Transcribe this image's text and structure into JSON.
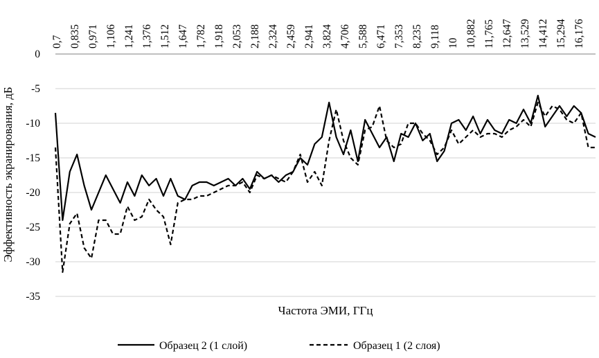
{
  "chart_data": {
    "type": "line",
    "xlabel": "Частота ЭМИ, ГГц",
    "ylabel": "Эффективность экранирования, дБ",
    "x_tick_labels": [
      "0,7",
      "0,835",
      "0,971",
      "1,106",
      "1,241",
      "1,376",
      "1,512",
      "1,647",
      "1,782",
      "1,918",
      "2,053",
      "2,188",
      "2,324",
      "2,459",
      "2,941",
      "3,824",
      "4,706",
      "5,588",
      "6,471",
      "7,353",
      "8,235",
      "9,118",
      "10",
      "10,882",
      "11,765",
      "12,647",
      "13,529",
      "14,412",
      "15,294",
      "16,176"
    ],
    "y_ticks": [
      0,
      -5,
      -10,
      -15,
      -20,
      -25,
      -30,
      -35
    ],
    "ylim": [
      -35,
      0
    ],
    "x_axis_position": "top",
    "grid": "horizontal",
    "legend_position": "bottom",
    "series": [
      {
        "name": "Образец 2 (1 слой)",
        "style": "solid",
        "color": "#000000",
        "x": [
          0.0,
          0.4,
          0.8,
          1.2,
          1.6,
          2.0,
          2.4,
          2.8,
          3.2,
          3.6,
          4.0,
          4.4,
          4.8,
          5.2,
          5.6,
          6.0,
          6.4,
          6.8,
          7.2,
          7.6,
          8.0,
          8.4,
          8.8,
          9.2,
          9.6,
          10.0,
          10.4,
          10.8,
          11.2,
          11.6,
          12.0,
          12.4,
          12.8,
          13.2,
          13.6,
          14.0,
          14.4,
          14.8,
          15.2,
          15.6,
          16.0,
          16.4,
          16.8,
          17.2,
          17.6,
          18.0,
          18.4,
          18.8,
          19.2,
          19.6,
          20.0,
          20.4,
          20.8,
          21.2,
          21.6,
          22.0,
          22.4,
          22.8,
          23.2,
          23.6,
          24.0,
          24.4,
          24.8,
          25.2,
          25.6,
          26.0,
          26.4,
          26.8,
          27.2,
          27.6,
          28.0,
          28.4,
          28.8,
          29.2,
          29.6,
          30.0
        ],
        "y": [
          -8.5,
          -24,
          -17,
          -14.5,
          -19,
          -22.5,
          -20,
          -17.5,
          -19.5,
          -21.5,
          -18.5,
          -20.5,
          -17.5,
          -19,
          -18,
          -20.5,
          -18,
          -20.5,
          -21,
          -19,
          -18.5,
          -18.5,
          -19,
          -18.5,
          -18,
          -19,
          -18,
          -19.5,
          -17,
          -18,
          -17.5,
          -18.5,
          -17.5,
          -17,
          -15,
          -16,
          -13,
          -12,
          -7,
          -12,
          -14.5,
          -11,
          -15.5,
          -9.5,
          -11.5,
          -13.5,
          -12,
          -15.5,
          -11.5,
          -12,
          -10,
          -12.5,
          -11.5,
          -15.5,
          -14,
          -10,
          -9.5,
          -11,
          -9,
          -11.5,
          -9.5,
          -11,
          -11.5,
          -9.5,
          -10,
          -8,
          -10,
          -6,
          -10.5,
          -9,
          -7.5,
          -9,
          -7.5,
          -8.5,
          -11.5,
          -12
        ]
      },
      {
        "name": "Образец 1 (2 слоя)",
        "style": "dashed",
        "color": "#000000",
        "x": [
          0.0,
          0.4,
          0.8,
          1.2,
          1.6,
          2.0,
          2.4,
          2.8,
          3.2,
          3.6,
          4.0,
          4.4,
          4.8,
          5.2,
          5.6,
          6.0,
          6.4,
          6.8,
          7.2,
          7.6,
          8.0,
          8.4,
          8.8,
          9.2,
          9.6,
          10.0,
          10.4,
          10.8,
          11.2,
          11.6,
          12.0,
          12.4,
          12.8,
          13.2,
          13.6,
          14.0,
          14.4,
          14.8,
          15.2,
          15.6,
          16.0,
          16.4,
          16.8,
          17.2,
          17.6,
          18.0,
          18.4,
          18.8,
          19.2,
          19.6,
          20.0,
          20.4,
          20.8,
          21.2,
          21.6,
          22.0,
          22.4,
          22.8,
          23.2,
          23.6,
          24.0,
          24.4,
          24.8,
          25.2,
          25.6,
          26.0,
          26.4,
          26.8,
          27.2,
          27.6,
          28.0,
          28.4,
          28.8,
          29.2,
          29.6,
          30.0
        ],
        "y": [
          -13.5,
          -31.5,
          -24.5,
          -23,
          -28,
          -29.5,
          -24,
          -24,
          -26,
          -26,
          -22,
          -24,
          -23.5,
          -21,
          -22.5,
          -23.5,
          -27.5,
          -21.5,
          -21,
          -21,
          -20.5,
          -20.5,
          -20,
          -19.5,
          -19,
          -19,
          -18.5,
          -20,
          -17.5,
          -18,
          -17.5,
          -18,
          -18.5,
          -17,
          -14.5,
          -18.5,
          -17,
          -19,
          -12.5,
          -8,
          -12.5,
          -15,
          -16,
          -11,
          -10.5,
          -7.5,
          -12.5,
          -13.5,
          -13,
          -10,
          -10,
          -11.5,
          -12.5,
          -14.5,
          -13.5,
          -11,
          -13,
          -12,
          -11,
          -12,
          -11.5,
          -11.5,
          -12,
          -11,
          -10.5,
          -9.5,
          -10.5,
          -7,
          -9,
          -7.5,
          -8,
          -9.5,
          -10,
          -8.5,
          -13.5,
          -13.5
        ]
      }
    ]
  }
}
